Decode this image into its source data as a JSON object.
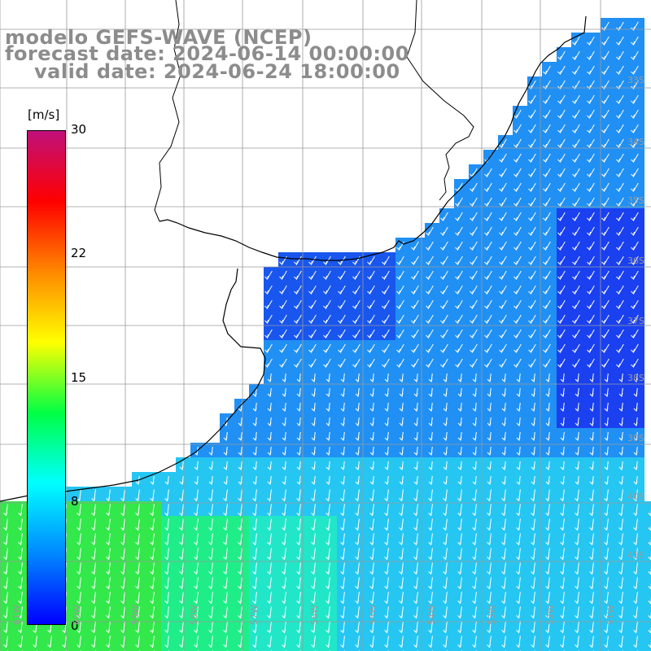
{
  "title": {
    "line1": "modelo GEFS-WAVE (NCEP)",
    "line2": "forecast date: 2024-06-14 00:00:00",
    "line3": "valid date: 2024-06-24 18:00:00"
  },
  "colorbar": {
    "unit": "[m/s]",
    "ticks": [
      "30",
      "22",
      "15",
      "8",
      "0"
    ],
    "tick_values": [
      30,
      22,
      15,
      8,
      0
    ],
    "range": [
      0,
      30
    ],
    "colors": [
      "#0000ff",
      "#0088ff",
      "#00ffff",
      "#00ff44",
      "#ffff00",
      "#ff8800",
      "#ff0000",
      "#c0107a"
    ]
  },
  "map": {
    "field": "wind speed with direction arrows",
    "lat_labels": [
      "33S",
      "34S",
      "35S",
      "36S",
      "37S",
      "38S",
      "39S",
      "40S",
      "41S"
    ],
    "lon_labels": [
      "61W",
      "60W",
      "59W",
      "58W",
      "57W",
      "56W",
      "55W",
      "54W",
      "53W",
      "52W",
      "51W"
    ],
    "land_color": "#ffffff",
    "grid_color": "#9a9a9a",
    "arrow_color": "#ffffff",
    "coast_color": "#000000"
  }
}
